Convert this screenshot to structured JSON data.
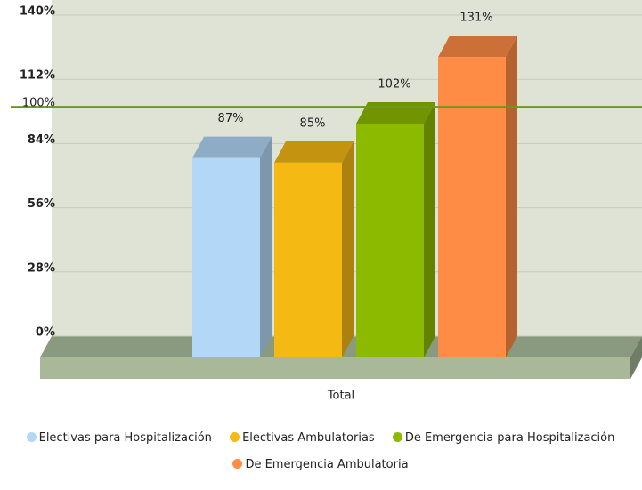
{
  "chart_data": {
    "type": "bar3d",
    "categories": [
      "Total"
    ],
    "series": [
      {
        "name": "Electivas para Hospitalización",
        "color": "#b3d7f7",
        "values": [
          87
        ],
        "value_labels": [
          "87%"
        ]
      },
      {
        "name": "Electivas Ambulatorias",
        "color": "#f5b914",
        "values": [
          85
        ],
        "value_labels": [
          "85%"
        ]
      },
      {
        "name": "De Emergencia para Hospitalización",
        "color": "#8cba00",
        "values": [
          102
        ],
        "value_labels": [
          "102%"
        ]
      },
      {
        "name": "De Emergencia Ambulatoria",
        "color": "#ff8c45",
        "values": [
          131
        ],
        "value_labels": [
          "131%"
        ]
      }
    ],
    "ylim": [
      0,
      140
    ],
    "yticks": [
      {
        "value": 0,
        "label": "0%"
      },
      {
        "value": 28,
        "label": "28%"
      },
      {
        "value": 56,
        "label": "56%"
      },
      {
        "value": 84,
        "label": "84%"
      },
      {
        "value": 112,
        "label": "112%"
      },
      {
        "value": 140,
        "label": "140%"
      }
    ],
    "reference_line": {
      "value": 100,
      "label": "100%",
      "color": "#6b9a1a"
    },
    "grid": true,
    "legend": "bottom"
  }
}
